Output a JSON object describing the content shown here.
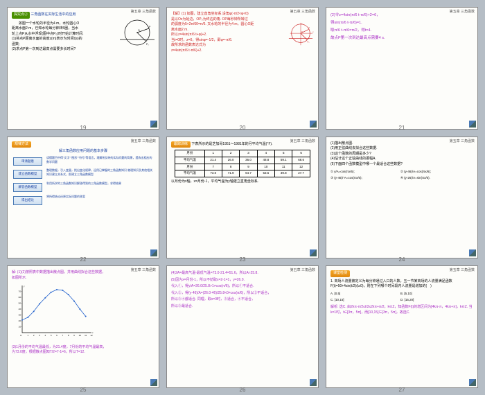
{
  "header_text": "第五章 三角函数",
  "slides": {
    "19": {
      "num": "19",
      "badge": "探究点②",
      "badge_title": "三角函数在实际生活中的应用",
      "lines": [
        "　　如图一个水轮的半径为4 m，水轮圆心O",
        "距离水面2 m，已知水轮每分钟转5圈，当水",
        "轮上点P从水中浮现(图中点P₀)时开始计算时间.",
        "(1)将点P距离水面的高度z(m)表示为时间t(s)的",
        "函数;",
        "(2)求点P第一次到达最高点需要多长时间?"
      ]
    },
    "20": {
      "num": "20",
      "lines": [
        "【解】(1) 如图，建立直角坐标系.设角φ(-π/2<φ<0)",
        "是以Ox为始边，OP₀为终边的角. OP每秒钟所转过",
        "的弧度为5×2π/60=π/6. 又水轮的半径为4 m，圆心O距",
        "离水面2 m.",
        "所以z=4sin(π/6 t+φ)+2.",
        "当t=0时，z=0，得sinφ=-1/2，即φ=-π/6.",
        "故所求的函数表达式为",
        "z=4sin(π/6 t-π/6)+2."
      ]
    },
    "21": {
      "num": "21",
      "lines": [
        "(2)令z=4sin(π/6 t-π/6)+2=6，",
        "得sin(π/6 t-π/6)=1.",
        "取π/6 t-π/6=π/2，得t=4.",
        "故点P第一次到达最高点需要4 s."
      ]
    },
    "22": {
      "num": "22",
      "title_bar": "规律方法",
      "title": "解三角函数应用问题的基本步骤",
      "flow": [
        {
          "box": "审清题意",
          "desc": "读懂题目中得\"文字\"\"图形\"\"符号\"等语言，理解所反映的实际问题的背景，提炼出相应的数学问题"
        },
        {
          "box": "建立函数模型",
          "desc": "整理数据，引入变量，找出变化规律，运用已掌握的三角函数知识,物理知识及其他相关知识建立关系式，即建立三角函数模型"
        },
        {
          "box": "解答函数模型",
          "desc": "利用所学的三角函数知识解答得到的三角函数模型，求得结果"
        },
        {
          "box": "得出结论",
          "desc": "将所得结论还原实际问题的答案"
        }
      ]
    },
    "23": {
      "num": "23",
      "badge": "跟踪训练",
      "intro": "下表所示的是芝加哥1951～1981年的月平均气温(℉).",
      "table": {
        "head1": [
          "月份",
          "1",
          "2",
          "3",
          "4",
          "5",
          "6"
        ],
        "row1": [
          "平均气温",
          "21.4",
          "26.0",
          "36.0",
          "48.8",
          "59.1",
          "68.6"
        ],
        "head2": [
          "月份",
          "7",
          "8",
          "9",
          "10",
          "11",
          "12"
        ],
        "row2": [
          "平均气温",
          "73.0",
          "71.9",
          "64.7",
          "53.5",
          "39.8",
          "27.7"
        ]
      },
      "footer": "以月份为x轴，x=月份-1，平均气温为y轴建立直角坐标系."
    },
    "24": {
      "num": "24",
      "lines": [
        "(1)描出散点图.",
        "(2)用正弦曲线去拟合这些数据.",
        "(3)这个函数的周期是多少?",
        "(4)估计这个正弦曲线的振幅A.",
        "(5)下面四个函数模型中哪一个最适合这些数据?"
      ],
      "options": [
        "① y/A=cos(πx/6);",
        "② (y-46)/A=cos(πx/6);",
        "③ (y-46)/-A=cos(πx/6);",
        "④ (y-26)/A=sin(πx/6)."
      ]
    },
    "25": {
      "num": "25",
      "line1": "解: (1)(2)按照表中数据描出散点图，并用曲线拟合这些数据，",
      "line2": "如图所示.",
      "chart": {
        "xvals": [
          0,
          1,
          2,
          3,
          4,
          5,
          6,
          7,
          8,
          9,
          10,
          11
        ],
        "yvals": [
          21.4,
          26.0,
          36.0,
          48.8,
          59.1,
          68.6,
          73.0,
          71.9,
          64.7,
          53.5,
          39.8,
          27.7
        ],
        "ymin": 0,
        "ymax": 80,
        "xmin": 0,
        "xmax": 12,
        "axis_color": "#000",
        "point_color": "#2060cc",
        "line_color": "#2060cc"
      },
      "line3": "(3)1月份的平均气温最低，为21.4度，7月份的平均气温最高，",
      "line4": "为73.0度，根据散点图知T/2=7-1=6，所以T=12."
    },
    "26": {
      "num": "26",
      "lines": [
        "(4)2A=最高气温-最低气温=73.0-21.4=51.6，所以A≈25.8.",
        "(5)因为x=月份-1，所以不妨取x=2-1=1，y=26.0.",
        "代入①，得y/A=26.0/25.8>1≠cos(π/6)，所以①不适合.",
        "代入②，得(y-46)/A=(26.0-46)/25.8<0≠cos(π/6)，所以②不适合，",
        "所以③④都适合. 同理，取x=0时，③适合，④不适合，",
        "所以③最适合."
      ]
    },
    "27": {
      "num": "27",
      "badge": "课堂检测",
      "q": "1. 商场人流量被定义为每分钟通过入口的人数，五一节某商场的人流量满足函数F(t)=50+4sin(t/2)(t≥0)，则在下列哪个时间段内人流量是增加的(　)",
      "opts": [
        "A. [0,5]",
        "B. [5,10]",
        "C. [10,15]",
        "D. [15,20]"
      ],
      "exp": "解析: 选C. 由2kπ-π/2≤t/2≤2kπ+π/2，k∈Z，知函数F(t)的增区间为[4kπ-π，4kπ+π]，k∈Z. 当k=1时，t∈[3π，5π]，而[10,15]⊆[3π，5π]，故选C."
    }
  }
}
